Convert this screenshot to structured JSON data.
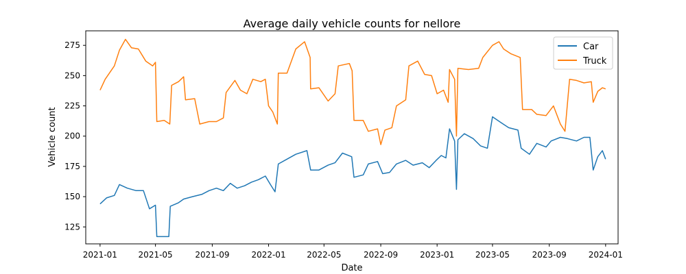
{
  "chart_data": {
    "type": "line",
    "title": "Average daily vehicle counts for nellore",
    "xlabel": "Date",
    "ylabel": "Vehicle count",
    "x_range": [
      "2020-12-01",
      "2024-01-28"
    ],
    "ylim": [
      111,
      287
    ],
    "x_ticks": [
      "2021-01",
      "2021-05",
      "2021-09",
      "2022-01",
      "2022-05",
      "2022-09",
      "2023-01",
      "2023-05",
      "2023-09",
      "2024-01"
    ],
    "y_ticks": [
      125,
      150,
      175,
      200,
      225,
      250,
      275
    ],
    "legend_position": "top-right",
    "series": [
      {
        "name": "Car",
        "color": "#1f77b4",
        "points": [
          [
            "2021-01-01",
            144
          ],
          [
            "2021-01-15",
            149
          ],
          [
            "2021-02-01",
            151
          ],
          [
            "2021-02-12",
            160
          ],
          [
            "2021-03-01",
            157
          ],
          [
            "2021-03-20",
            155
          ],
          [
            "2021-04-05",
            155
          ],
          [
            "2021-04-18",
            140
          ],
          [
            "2021-05-01",
            143
          ],
          [
            "2021-05-04",
            117
          ],
          [
            "2021-05-15",
            117
          ],
          [
            "2021-05-30",
            117
          ],
          [
            "2021-06-02",
            142
          ],
          [
            "2021-06-20",
            145
          ],
          [
            "2021-07-01",
            148
          ],
          [
            "2021-07-20",
            150
          ],
          [
            "2021-08-10",
            152
          ],
          [
            "2021-08-25",
            155
          ],
          [
            "2021-09-10",
            157
          ],
          [
            "2021-09-25",
            155
          ],
          [
            "2021-10-10",
            161
          ],
          [
            "2021-10-25",
            157
          ],
          [
            "2021-11-10",
            159
          ],
          [
            "2021-11-25",
            162
          ],
          [
            "2021-12-10",
            164
          ],
          [
            "2021-12-25",
            167
          ],
          [
            "2022-01-05",
            160
          ],
          [
            "2022-01-15",
            154
          ],
          [
            "2022-01-22",
            177
          ],
          [
            "2022-02-10",
            181
          ],
          [
            "2022-03-01",
            185
          ],
          [
            "2022-03-25",
            188
          ],
          [
            "2022-04-02",
            172
          ],
          [
            "2022-04-20",
            172
          ],
          [
            "2022-05-10",
            176
          ],
          [
            "2022-05-25",
            178
          ],
          [
            "2022-06-10",
            186
          ],
          [
            "2022-06-30",
            183
          ],
          [
            "2022-07-05",
            166
          ],
          [
            "2022-07-25",
            168
          ],
          [
            "2022-08-05",
            177
          ],
          [
            "2022-08-25",
            179
          ],
          [
            "2022-09-05",
            169
          ],
          [
            "2022-09-20",
            170
          ],
          [
            "2022-10-05",
            177
          ],
          [
            "2022-10-25",
            180
          ],
          [
            "2022-11-10",
            176
          ],
          [
            "2022-11-30",
            178
          ],
          [
            "2022-12-15",
            174
          ],
          [
            "2022-12-30",
            180
          ],
          [
            "2023-01-10",
            184
          ],
          [
            "2023-01-20",
            182
          ],
          [
            "2023-01-28",
            206
          ],
          [
            "2023-02-08",
            196
          ],
          [
            "2023-02-12",
            156
          ],
          [
            "2023-02-15",
            197
          ],
          [
            "2023-03-01",
            202
          ],
          [
            "2023-03-20",
            198
          ],
          [
            "2023-04-05",
            192
          ],
          [
            "2023-04-20",
            190
          ],
          [
            "2023-05-01",
            216
          ],
          [
            "2023-05-20",
            211
          ],
          [
            "2023-06-05",
            207
          ],
          [
            "2023-06-25",
            205
          ],
          [
            "2023-07-02",
            190
          ],
          [
            "2023-07-20",
            185
          ],
          [
            "2023-08-05",
            194
          ],
          [
            "2023-08-25",
            191
          ],
          [
            "2023-09-05",
            196
          ],
          [
            "2023-09-25",
            199
          ],
          [
            "2023-10-10",
            198
          ],
          [
            "2023-10-30",
            196
          ],
          [
            "2023-11-15",
            199
          ],
          [
            "2023-11-28",
            199
          ],
          [
            "2023-12-05",
            172
          ],
          [
            "2023-12-15",
            183
          ],
          [
            "2023-12-25",
            188
          ],
          [
            "2024-01-01",
            181
          ]
        ]
      },
      {
        "name": "Truck",
        "color": "#ff7f0e",
        "points": [
          [
            "2021-01-01",
            238
          ],
          [
            "2021-01-12",
            247
          ],
          [
            "2021-02-01",
            258
          ],
          [
            "2021-02-12",
            271
          ],
          [
            "2021-02-25",
            280
          ],
          [
            "2021-03-10",
            273
          ],
          [
            "2021-03-25",
            272
          ],
          [
            "2021-04-10",
            262
          ],
          [
            "2021-04-25",
            258
          ],
          [
            "2021-05-01",
            261
          ],
          [
            "2021-05-04",
            212
          ],
          [
            "2021-05-20",
            213
          ],
          [
            "2021-06-01",
            210
          ],
          [
            "2021-06-05",
            242
          ],
          [
            "2021-06-20",
            245
          ],
          [
            "2021-07-01",
            249
          ],
          [
            "2021-07-05",
            230
          ],
          [
            "2021-07-25",
            231
          ],
          [
            "2021-08-05",
            210
          ],
          [
            "2021-08-25",
            212
          ],
          [
            "2021-09-10",
            212
          ],
          [
            "2021-09-25",
            215
          ],
          [
            "2021-10-01",
            236
          ],
          [
            "2021-10-20",
            246
          ],
          [
            "2021-11-01",
            238
          ],
          [
            "2021-11-15",
            235
          ],
          [
            "2021-11-28",
            247
          ],
          [
            "2021-12-15",
            245
          ],
          [
            "2021-12-25",
            247
          ],
          [
            "2022-01-01",
            225
          ],
          [
            "2022-01-10",
            220
          ],
          [
            "2022-01-20",
            210
          ],
          [
            "2022-01-22",
            252
          ],
          [
            "2022-02-10",
            252
          ],
          [
            "2022-03-01",
            272
          ],
          [
            "2022-03-20",
            278
          ],
          [
            "2022-04-01",
            265
          ],
          [
            "2022-04-02",
            239
          ],
          [
            "2022-04-20",
            240
          ],
          [
            "2022-05-10",
            229
          ],
          [
            "2022-05-25",
            235
          ],
          [
            "2022-06-01",
            258
          ],
          [
            "2022-06-25",
            260
          ],
          [
            "2022-07-01",
            254
          ],
          [
            "2022-07-05",
            213
          ],
          [
            "2022-07-25",
            213
          ],
          [
            "2022-08-05",
            204
          ],
          [
            "2022-08-25",
            206
          ],
          [
            "2022-09-01",
            193
          ],
          [
            "2022-09-10",
            205
          ],
          [
            "2022-09-25",
            207
          ],
          [
            "2022-10-05",
            225
          ],
          [
            "2022-10-25",
            230
          ],
          [
            "2022-11-01",
            258
          ],
          [
            "2022-11-20",
            262
          ],
          [
            "2022-12-05",
            251
          ],
          [
            "2022-12-20",
            250
          ],
          [
            "2023-01-01",
            235
          ],
          [
            "2023-01-15",
            238
          ],
          [
            "2023-01-25",
            228
          ],
          [
            "2023-01-28",
            255
          ],
          [
            "2023-02-08",
            247
          ],
          [
            "2023-02-12",
            200
          ],
          [
            "2023-02-15",
            256
          ],
          [
            "2023-03-10",
            255
          ],
          [
            "2023-04-01",
            256
          ],
          [
            "2023-04-10",
            265
          ],
          [
            "2023-05-01",
            275
          ],
          [
            "2023-05-15",
            278
          ],
          [
            "2023-05-25",
            272
          ],
          [
            "2023-06-10",
            268
          ],
          [
            "2023-06-30",
            265
          ],
          [
            "2023-07-05",
            222
          ],
          [
            "2023-07-25",
            222
          ],
          [
            "2023-08-05",
            218
          ],
          [
            "2023-08-25",
            217
          ],
          [
            "2023-09-10",
            225
          ],
          [
            "2023-09-25",
            210
          ],
          [
            "2023-10-05",
            204
          ],
          [
            "2023-10-15",
            247
          ],
          [
            "2023-10-30",
            246
          ],
          [
            "2023-11-15",
            244
          ],
          [
            "2023-12-01",
            245
          ],
          [
            "2023-12-05",
            228
          ],
          [
            "2023-12-15",
            237
          ],
          [
            "2023-12-25",
            240
          ],
          [
            "2024-01-01",
            239
          ]
        ]
      }
    ]
  }
}
